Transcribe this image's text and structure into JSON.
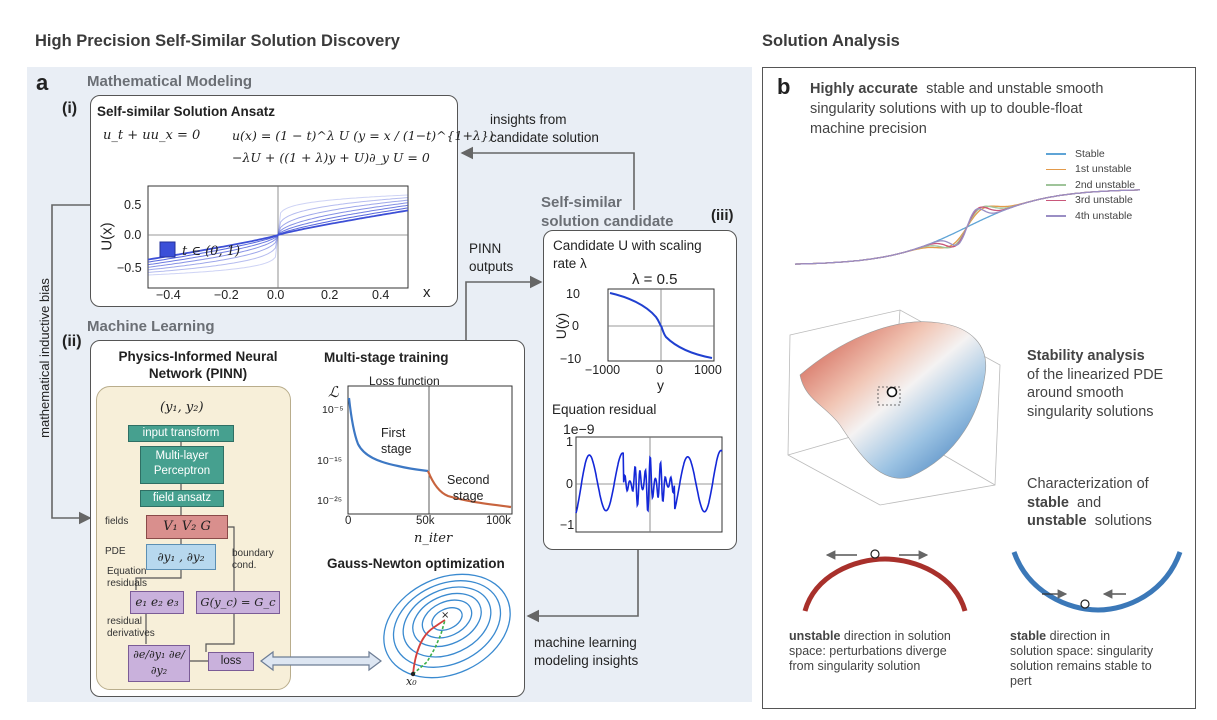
{
  "headers": {
    "left": "High Precision Self-Similar Solution Discovery",
    "right": "Solution Analysis"
  },
  "panel_a": {
    "letter": "a",
    "modeling_title": "Mathematical Modeling",
    "ml_title": "Machine Learning",
    "inductive_bias": "mathematical inductive bias",
    "insights_from": [
      "insights from",
      "candidate solution"
    ],
    "pinn_outputs": [
      "PINN",
      "outputs"
    ],
    "ml_insights": [
      "machine learning",
      "modeling insights"
    ]
  },
  "box_i": {
    "label": "(i)",
    "title": "Self-similar Solution Ansatz",
    "eq1": "u_t + uu_x = 0",
    "eq2": "u(x) = (1 − t)^λ U (y = x / (1−t)^{1+λ})",
    "eq3": "−λU + ((1 + λ)y + U)∂_y U = 0",
    "legend": "t ∈ (0, 1)",
    "ylabel": "U(x)",
    "xlabel": "x",
    "xticks": [
      "−0.4",
      "−0.2",
      "0.0",
      "0.2",
      "0.4"
    ],
    "yticks": [
      "0.5",
      "0.0",
      "−0.5"
    ]
  },
  "box_iii": {
    "section_title": [
      "Self-similar",
      "solution candidate"
    ],
    "label": "(iii)",
    "title": [
      "Candidate U with scaling",
      "rate λ"
    ],
    "plot_title": "λ = 0.5",
    "ylabel": "U(y)",
    "xlabel": "y",
    "xticks": [
      "−1000",
      "0",
      "1000"
    ],
    "yticks": [
      "10",
      "0",
      "−10"
    ],
    "residual_title": "Equation residual",
    "residual_scale": "1e−9",
    "residual_yticks": [
      "1",
      "0",
      "−1"
    ]
  },
  "box_ii": {
    "label": "(ii)",
    "pinn_title": [
      "Physics-Informed Neural",
      "Network (PINN)"
    ],
    "inputs": "(y₁, y₂)",
    "input_transform": "input transform",
    "mlp": [
      "Multi-layer",
      "Perceptron"
    ],
    "field_ansatz": "field ansatz",
    "fields_label": "fields",
    "fields": "V₁  V₂  G",
    "pde_label": "PDE",
    "pde": "∂y₁ , ∂y₂",
    "boundary": [
      "boundary",
      "cond."
    ],
    "eq_residuals": [
      "Equation",
      "residuals"
    ],
    "residuals": "e₁ e₂ e₃",
    "bc": "G(y_c) = G_c",
    "residual_derivs": [
      "residual",
      "derivatives"
    ],
    "derivs": "∂e/∂y₁  ∂e/∂y₂",
    "loss": "loss",
    "multistage_title": "Multi-stage training",
    "loss_fn": "Loss function",
    "loss_symbol": "ℒ",
    "first_stage": [
      "First",
      "stage"
    ],
    "second_stage": [
      "Second",
      "stage"
    ],
    "loss_yticks": [
      "10⁻⁵",
      "10⁻¹⁵",
      "10⁻²⁵"
    ],
    "loss_xticks": [
      "0",
      "50k",
      "100k"
    ],
    "loss_xlabel": "n_iter",
    "gn_title": "Gauss-Newton optimization",
    "x0": "x₀",
    "xstar": "x*"
  },
  "panel_b": {
    "letter": "b",
    "intro_bold": "Highly accurate",
    "intro_rest": [
      "stable and unstable smooth",
      "singularity solutions with up to double-float",
      "machine precision"
    ],
    "legend": [
      "Stable",
      "1st unstable",
      "2nd unstable",
      "3rd unstable",
      "4th unstable"
    ],
    "legend_colors": [
      "#5fa4d6",
      "#e39a4a",
      "#9fc49a",
      "#c9577a",
      "#9a8ec4"
    ],
    "stability_bold": "Stability analysis",
    "stability_rest": [
      "of the linearized PDE",
      "around smooth",
      "singularity solutions"
    ],
    "char_line1": "Characterization of",
    "char_stable": "stable",
    "char_and": "and",
    "char_unstable": "unstable",
    "char_solutions": "solutions",
    "unstable_bold": "unstable",
    "unstable_rest": [
      " direction in solution",
      "space: perturbations diverge",
      "from singularity solution"
    ],
    "stable_bold": "stable",
    "stable_rest": [
      " direction in",
      "solution space: singularity",
      "solution remains stable to",
      "pert"
    ]
  }
}
